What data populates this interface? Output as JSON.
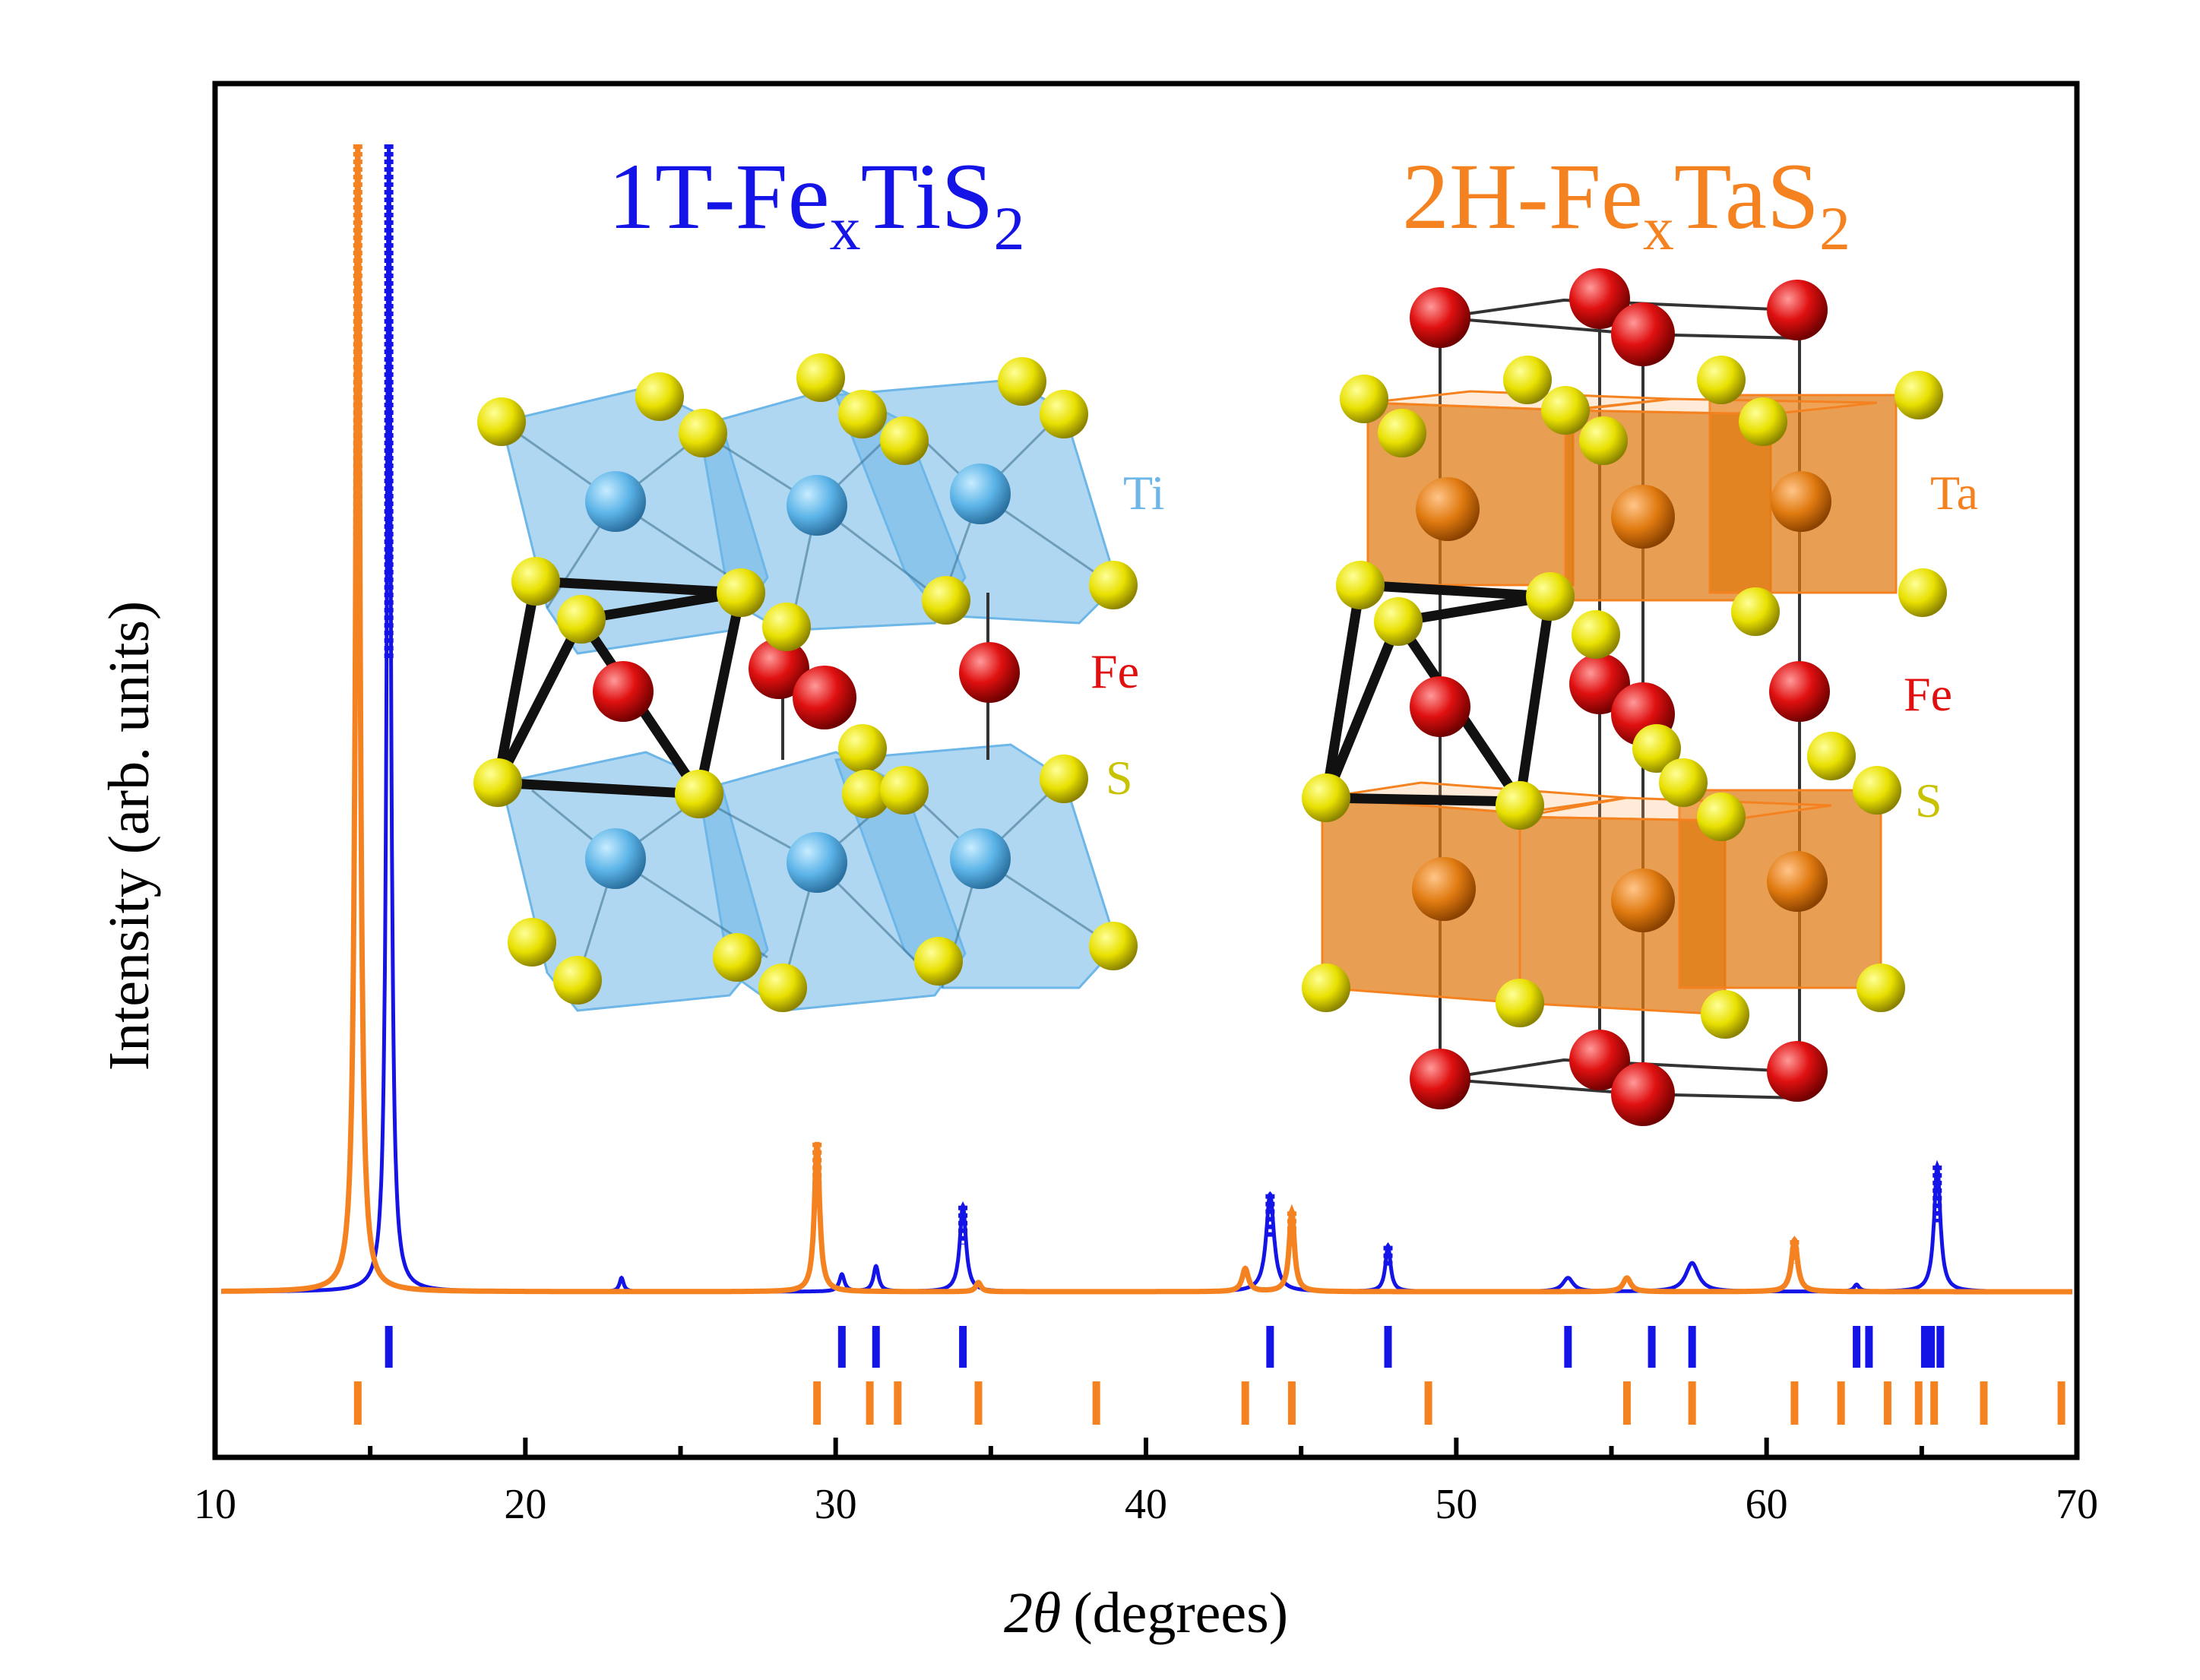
{
  "chart_data": {
    "type": "line",
    "title": "",
    "xlabel_symbol": "2θ",
    "xlabel_unit": "(degrees)",
    "ylabel": "Intensity (arb. units)",
    "xlim": [
      10,
      70
    ],
    "ylim": [
      0,
      1
    ],
    "xticks": [
      10,
      20,
      30,
      40,
      50,
      60,
      70
    ],
    "xtick_labels": [
      "10",
      "20",
      "30",
      "40",
      "50",
      "60",
      "70"
    ],
    "grid": false,
    "legend": "none",
    "compound_labels": [
      {
        "prefix": "1T-Fe",
        "sub": "x",
        "mid": "TiS",
        "sub2": "2",
        "color": "#1414e6"
      },
      {
        "prefix": "2H-Fe",
        "sub": "x",
        "mid": "TaS",
        "sub2": "2",
        "color": "#f58220"
      }
    ],
    "series": [
      {
        "name": "1T-FexTiS2",
        "color": "#1414e6",
        "baseline": 0.0,
        "peaks": [
          {
            "x": 15.6,
            "h": 1.0,
            "w": 0.08
          },
          {
            "x": 23.1,
            "h": 0.012,
            "w": 0.08
          },
          {
            "x": 30.2,
            "h": 0.015,
            "w": 0.1
          },
          {
            "x": 31.3,
            "h": 0.022,
            "w": 0.1
          },
          {
            "x": 34.1,
            "h": 0.075,
            "w": 0.12
          },
          {
            "x": 44.0,
            "h": 0.085,
            "w": 0.15
          },
          {
            "x": 47.8,
            "h": 0.04,
            "w": 0.1
          },
          {
            "x": 53.6,
            "h": 0.012,
            "w": 0.2
          },
          {
            "x": 57.6,
            "h": 0.025,
            "w": 0.25
          },
          {
            "x": 62.9,
            "h": 0.006,
            "w": 0.1
          },
          {
            "x": 65.5,
            "h": 0.11,
            "w": 0.12
          }
        ]
      },
      {
        "name": "2H-FexTaS2",
        "color": "#f58220",
        "baseline": 0.0,
        "peaks": [
          {
            "x": 14.6,
            "h": 1.0,
            "w": 0.09
          },
          {
            "x": 29.4,
            "h": 0.13,
            "w": 0.1
          },
          {
            "x": 34.6,
            "h": 0.008,
            "w": 0.1
          },
          {
            "x": 43.2,
            "h": 0.02,
            "w": 0.12
          },
          {
            "x": 44.7,
            "h": 0.07,
            "w": 0.1
          },
          {
            "x": 55.5,
            "h": 0.012,
            "w": 0.15
          },
          {
            "x": 60.9,
            "h": 0.045,
            "w": 0.12
          }
        ]
      }
    ],
    "reference_ticks": [
      {
        "name": "1T-FexTiS2",
        "color": "#1414e6",
        "positions": [
          15.6,
          30.2,
          31.3,
          34.1,
          44.0,
          47.8,
          53.6,
          56.3,
          57.6,
          62.9,
          63.3,
          65.1,
          65.3,
          65.6
        ]
      },
      {
        "name": "2H-FexTaS2",
        "color": "#f58220",
        "positions": [
          14.6,
          29.4,
          31.1,
          32.0,
          34.6,
          38.4,
          43.2,
          44.7,
          49.1,
          55.5,
          57.6,
          60.9,
          62.4,
          63.9,
          64.9,
          65.4,
          67.0,
          69.5
        ]
      }
    ],
    "insets": [
      {
        "name": "1T-FexTiS2 structure",
        "labels": [
          {
            "text": "Ti",
            "color": "#6db6e8"
          },
          {
            "text": "Fe",
            "color": "#e01010"
          },
          {
            "text": "S",
            "color": "#c9c200"
          }
        ]
      },
      {
        "name": "2H-FexTaS2 structure",
        "labels": [
          {
            "text": "Ta",
            "color": "#f58220"
          },
          {
            "text": "Fe",
            "color": "#e01010"
          },
          {
            "text": "S",
            "color": "#c9c200"
          }
        ]
      }
    ]
  }
}
